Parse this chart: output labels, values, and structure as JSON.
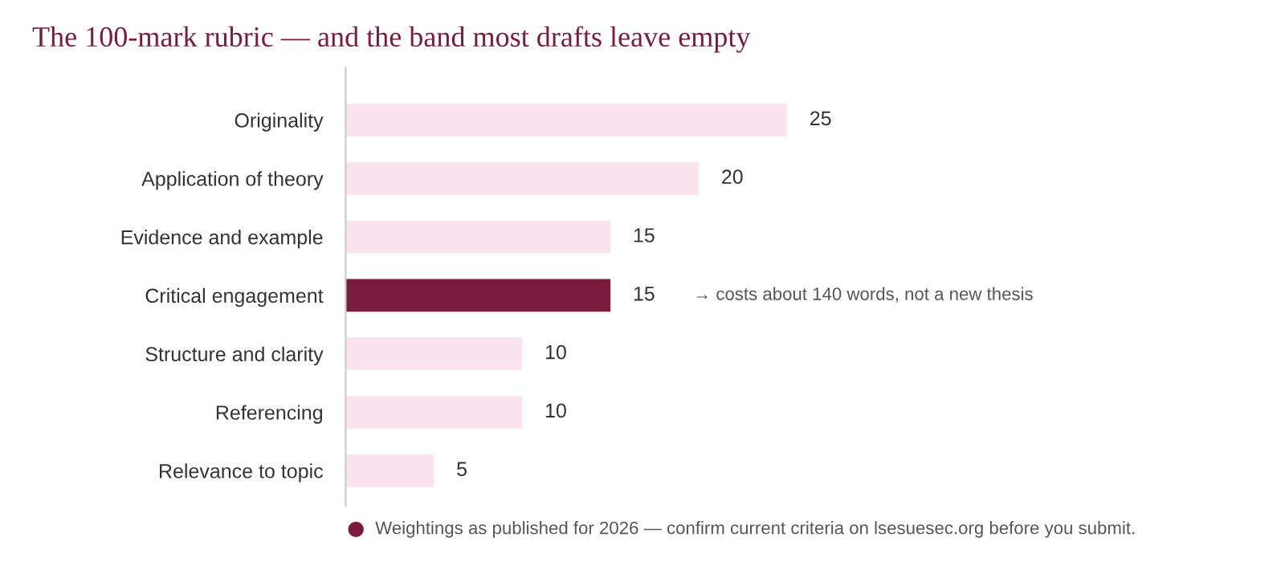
{
  "chart_data": {
    "type": "bar",
    "orientation": "horizontal",
    "title": "The 100-mark rubric — and the band most drafts leave empty",
    "categories": [
      "Originality",
      "Application of theory",
      "Evidence and example",
      "Critical engagement",
      "Structure and clarity",
      "Referencing",
      "Relevance to topic"
    ],
    "values": [
      25,
      20,
      15,
      15,
      10,
      10,
      5
    ],
    "colors": [
      "#fce4ef",
      "#fce4ef",
      "#fce4ef",
      "#7b1c3e",
      "#fce4ef",
      "#fce4ef",
      "#fce4ef"
    ],
    "data_labels": true,
    "grid": false,
    "legend": false,
    "annotations": [
      "→ costs about 140 words, not a new thesis",
      "Weightings as published for 2026 — confirm current criteria on lsesuesec.org before you submit."
    ]
  }
}
